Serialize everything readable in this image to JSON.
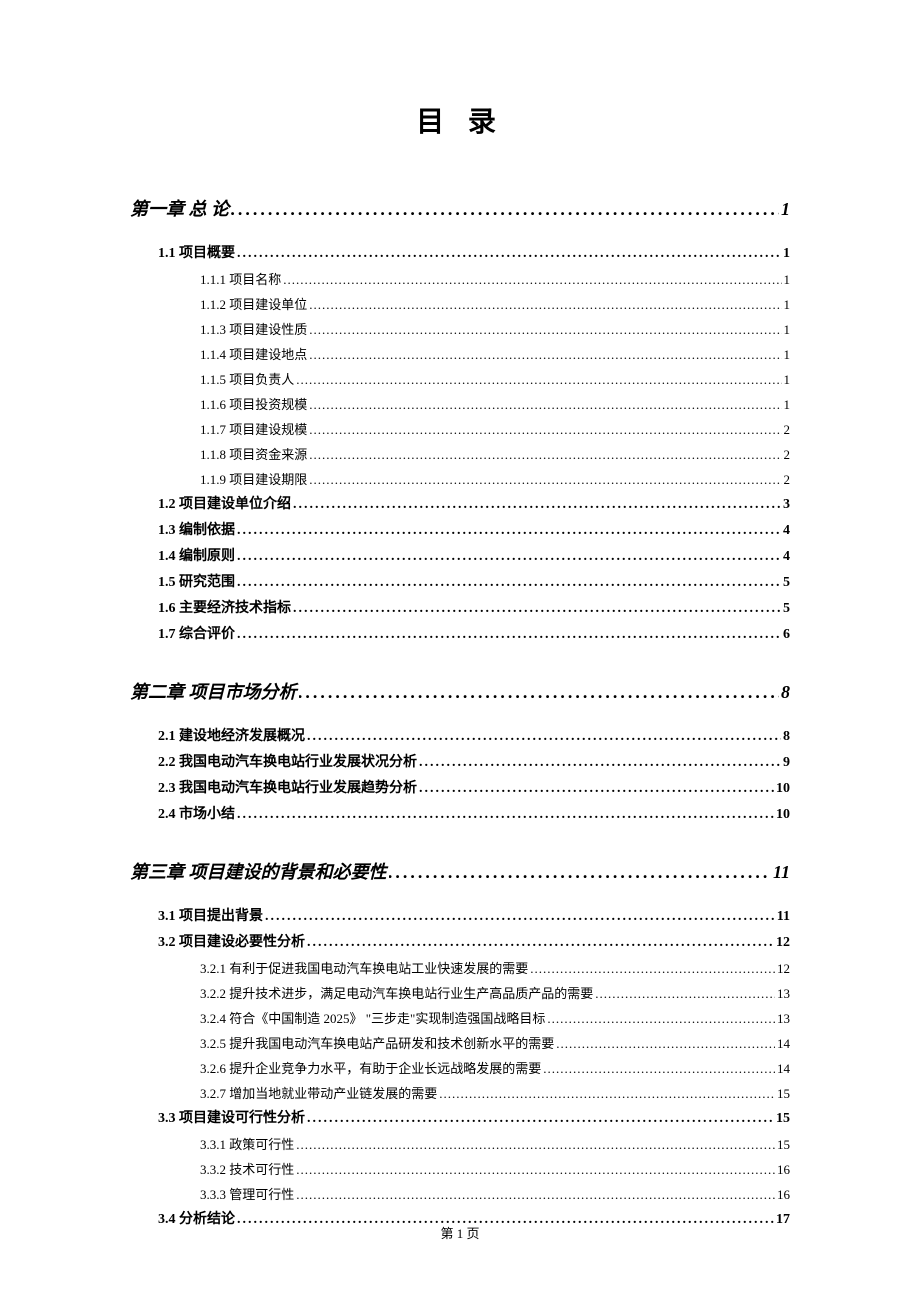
{
  "title": "目 录",
  "footer": "第 1 页",
  "entries": [
    {
      "level": 1,
      "label": "第一章 总 论",
      "page": "1"
    },
    {
      "level": 2,
      "label": "1.1 项目概要",
      "page": "1"
    },
    {
      "level": 3,
      "label": "1.1.1 项目名称",
      "page": "1"
    },
    {
      "level": 3,
      "label": "1.1.2 项目建设单位",
      "page": "1"
    },
    {
      "level": 3,
      "label": "1.1.3 项目建设性质",
      "page": "1"
    },
    {
      "level": 3,
      "label": "1.1.4 项目建设地点",
      "page": "1"
    },
    {
      "level": 3,
      "label": "1.1.5 项目负责人",
      "page": "1"
    },
    {
      "level": 3,
      "label": "1.1.6 项目投资规模",
      "page": "1"
    },
    {
      "level": 3,
      "label": "1.1.7 项目建设规模",
      "page": "2"
    },
    {
      "level": 3,
      "label": "1.1.8 项目资金来源",
      "page": "2"
    },
    {
      "level": 3,
      "label": "1.1.9 项目建设期限",
      "page": "2"
    },
    {
      "level": 2,
      "label": "1.2 项目建设单位介绍",
      "page": "3"
    },
    {
      "level": 2,
      "label": "1.3 编制依据",
      "page": "4"
    },
    {
      "level": 2,
      "label": "1.4 编制原则",
      "page": "4"
    },
    {
      "level": 2,
      "label": "1.5 研究范围",
      "page": "5"
    },
    {
      "level": 2,
      "label": "1.6 主要经济技术指标",
      "page": "5"
    },
    {
      "level": 2,
      "label": "1.7 综合评价",
      "page": "6"
    },
    {
      "level": 1,
      "label": "第二章 项目市场分析",
      "page": "8"
    },
    {
      "level": 2,
      "label": "2.1 建设地经济发展概况",
      "page": "8"
    },
    {
      "level": 2,
      "label": "2.2 我国电动汽车换电站行业发展状况分析",
      "page": "9"
    },
    {
      "level": 2,
      "label": "2.3 我国电动汽车换电站行业发展趋势分析",
      "page": "10"
    },
    {
      "level": 2,
      "label": "2.4 市场小结",
      "page": "10"
    },
    {
      "level": 1,
      "label": "第三章 项目建设的背景和必要性",
      "page": "11"
    },
    {
      "level": 2,
      "label": "3.1 项目提出背景",
      "page": "11"
    },
    {
      "level": 2,
      "label": "3.2 项目建设必要性分析",
      "page": "12"
    },
    {
      "level": 3,
      "label": "3.2.1 有利于促进我国电动汽车换电站工业快速发展的需要",
      "page": "12"
    },
    {
      "level": 3,
      "label": "3.2.2 提升技术进步，满足电动汽车换电站行业生产高品质产品的需要",
      "page": "13"
    },
    {
      "level": 3,
      "label": "3.2.4 符合《中国制造 2025》 \"三步走\"实现制造强国战略目标",
      "page": "13"
    },
    {
      "level": 3,
      "label": "3.2.5 提升我国电动汽车换电站产品研发和技术创新水平的需要",
      "page": "14"
    },
    {
      "level": 3,
      "label": "3.2.6 提升企业竞争力水平，有助于企业长远战略发展的需要",
      "page": "14"
    },
    {
      "level": 3,
      "label": "3.2.7 增加当地就业带动产业链发展的需要",
      "page": "15"
    },
    {
      "level": 2,
      "label": "3.3 项目建设可行性分析",
      "page": "15"
    },
    {
      "level": 3,
      "label": "3.3.1 政策可行性",
      "page": "15"
    },
    {
      "level": 3,
      "label": "3.3.2 技术可行性",
      "page": "16"
    },
    {
      "level": 3,
      "label": "3.3.3 管理可行性",
      "page": "16"
    },
    {
      "level": 2,
      "label": "3.4 分析结论",
      "page": "17"
    }
  ]
}
